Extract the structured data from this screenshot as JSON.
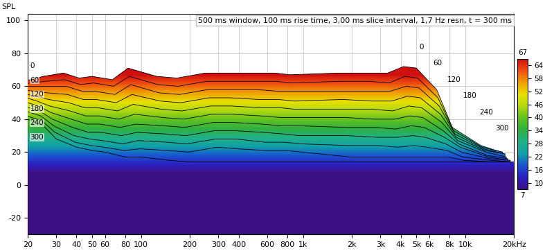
{
  "chart_data": {
    "type": "waterfall",
    "title": "500 ms window, 100 ms rise time, 3,00 ms slice interval, 1,7 Hz resn, t = 300 ms",
    "ylabel": "SPL",
    "log": "x",
    "grid": true,
    "xlim": [
      20,
      20000
    ],
    "xticks": [
      20,
      30,
      40,
      50,
      60,
      80,
      100,
      200,
      300,
      400,
      600,
      800,
      {
        "value": 1000,
        "label": "1k"
      },
      {
        "value": 2000,
        "label": "2k"
      },
      {
        "value": 3000,
        "label": "3k"
      },
      {
        "value": 4000,
        "label": "4k"
      },
      {
        "value": 5000,
        "label": "5k"
      },
      {
        "value": 6000,
        "label": "6k"
      },
      {
        "value": 8000,
        "label": "8k"
      },
      {
        "value": 10000,
        "label": "10k"
      },
      {
        "value": 20000,
        "label": "20kHz"
      }
    ],
    "ylim": [
      -30,
      104
    ],
    "yticks": [
      -20,
      0,
      20,
      40,
      60,
      80,
      100
    ],
    "zlim": [
      0,
      300
    ],
    "zticks": [
      0,
      60,
      120,
      180,
      240,
      300
    ],
    "clim": [
      7,
      67
    ],
    "cticks": [
      10,
      16,
      22,
      28,
      34,
      40,
      46,
      52,
      58,
      64
    ],
    "x": [
      20,
      25,
      30,
      40,
      50,
      60,
      80,
      100,
      150,
      200,
      300,
      400,
      600,
      800,
      1000,
      2000,
      3000,
      4000,
      5000,
      6000,
      8000,
      10000,
      15000,
      20000
    ],
    "z": [
      0,
      30,
      60,
      90,
      120,
      150,
      180,
      210,
      240,
      270,
      300
    ],
    "values": [
      [
        62,
        64,
        66,
        68,
        65,
        66,
        64,
        71,
        66,
        65,
        68,
        68,
        68,
        68,
        67,
        68,
        68,
        68,
        72,
        71,
        58,
        35,
        24,
        20
      ],
      [
        61,
        62,
        63,
        64,
        61,
        62,
        60,
        66,
        61,
        60,
        63,
        63,
        63,
        63,
        62,
        63,
        63,
        62,
        66,
        65,
        53,
        33,
        23,
        20
      ],
      [
        60,
        60,
        60,
        60,
        57,
        57,
        55,
        61,
        56,
        55,
        58,
        58,
        58,
        57,
        57,
        57,
        57,
        57,
        60,
        59,
        48,
        31,
        22,
        19
      ],
      [
        58,
        57,
        56,
        55,
        52,
        52,
        50,
        55,
        51,
        50,
        53,
        53,
        52,
        52,
        51,
        52,
        51,
        51,
        54,
        53,
        43,
        29,
        21,
        19
      ],
      [
        56,
        54,
        52,
        50,
        47,
        47,
        45,
        49,
        46,
        45,
        48,
        48,
        47,
        47,
        46,
        46,
        46,
        45,
        48,
        47,
        38,
        27,
        20,
        17
      ],
      [
        54,
        51,
        48,
        45,
        42,
        42,
        40,
        43,
        41,
        40,
        43,
        43,
        42,
        41,
        41,
        41,
        40,
        40,
        42,
        41,
        33,
        25,
        18,
        16
      ],
      [
        51,
        48,
        44,
        40,
        37,
        37,
        35,
        37,
        36,
        35,
        38,
        38,
        37,
        36,
        36,
        35,
        35,
        34,
        36,
        35,
        29,
        23,
        17,
        15
      ],
      [
        48,
        45,
        40,
        35,
        32,
        32,
        30,
        32,
        31,
        30,
        33,
        33,
        32,
        31,
        30,
        30,
        29,
        29,
        30,
        29,
        25,
        20,
        16,
        15
      ],
      [
        45,
        42,
        36,
        30,
        28,
        27,
        25,
        27,
        26,
        25,
        28,
        28,
        26,
        26,
        25,
        24,
        24,
        23,
        24,
        23,
        21,
        17,
        15,
        14
      ],
      [
        42,
        39,
        32,
        26,
        24,
        23,
        21,
        22,
        21,
        20,
        23,
        22,
        21,
        21,
        20,
        17,
        17,
        17,
        17,
        17,
        17,
        15,
        14,
        14
      ],
      [
        40,
        36,
        28,
        23,
        21,
        20,
        17,
        17,
        15,
        14,
        14,
        14,
        14,
        14,
        14,
        14,
        14,
        14,
        14,
        14,
        14,
        14,
        14,
        14
      ]
    ]
  }
}
